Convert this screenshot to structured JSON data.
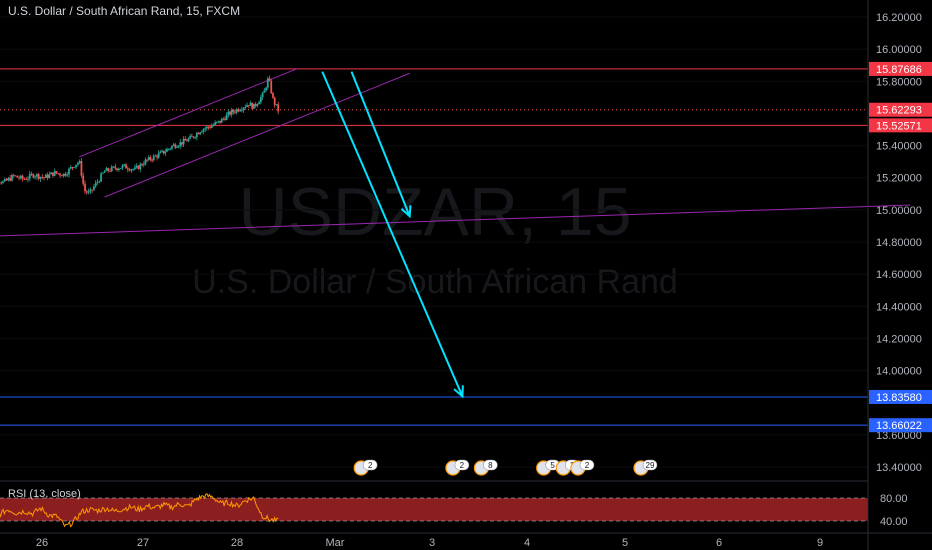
{
  "header": {
    "symbol_line": "U.S. Dollar / South African Rand, 15, FXCM"
  },
  "watermark": {
    "ticker": "USDZAR, 15",
    "name": "U.S. Dollar / South African Rand"
  },
  "rsi": {
    "label": "RSI (13, close)",
    "upper_level": 80,
    "lower_level": 40,
    "axis_labels": [
      "80.00",
      "40.00"
    ]
  },
  "colors": {
    "background": "#000000",
    "axis_text": "#b2b5be",
    "candle_up": "#26a69a",
    "candle_down": "#ef5350",
    "channel": "#9c27b0",
    "support_resistance": "#f23645",
    "target_lines": "#2962ff",
    "arrows": "#00e5ff",
    "rsi_line": "#ff9800",
    "rsi_band": "#8b1f1f"
  },
  "chart_data": {
    "type": "candlestick",
    "title": "U.S. Dollar / South African Rand, 15, FXCM",
    "x_ticks": [
      "26",
      "27",
      "28",
      "Mar",
      "3",
      "4",
      "5",
      "6",
      "9"
    ],
    "y_ticks": [
      "16.20000",
      "16.00000",
      "15.80000",
      "15.40000",
      "15.20000",
      "15.00000",
      "14.80000",
      "14.60000",
      "14.40000",
      "14.20000",
      "14.00000",
      "13.60000",
      "13.40000"
    ],
    "ylim": [
      13.3,
      16.3
    ],
    "price_labels": [
      {
        "value": "15.87686",
        "color": "#f23645"
      },
      {
        "value": "15.62293",
        "color": "#f23645"
      },
      {
        "value": "15.52571",
        "color": "#f23645"
      },
      {
        "value": "13.83580",
        "color": "#2962ff"
      },
      {
        "value": "13.66022",
        "color": "#2962ff"
      }
    ],
    "horizontal_levels": [
      15.87686,
      15.52571,
      13.8358,
      13.66022
    ],
    "last_price": 15.62293,
    "price_path": [
      [
        0,
        15.18
      ],
      [
        0.1,
        15.2
      ],
      [
        0.2,
        15.17
      ],
      [
        0.3,
        15.21
      ],
      [
        0.4,
        15.19
      ],
      [
        0.5,
        15.22
      ],
      [
        0.6,
        15.2
      ],
      [
        0.7,
        15.23
      ],
      [
        0.8,
        15.22
      ],
      [
        0.9,
        15.28
      ],
      [
        0.95,
        15.3
      ],
      [
        1.0,
        15.12
      ],
      [
        1.05,
        15.1
      ],
      [
        1.1,
        15.15
      ],
      [
        1.2,
        15.24
      ],
      [
        1.3,
        15.26
      ],
      [
        1.4,
        15.27
      ],
      [
        1.5,
        15.25
      ],
      [
        1.6,
        15.3
      ],
      [
        1.7,
        15.33
      ],
      [
        1.8,
        15.36
      ],
      [
        1.9,
        15.4
      ],
      [
        2.0,
        15.42
      ],
      [
        2.1,
        15.45
      ],
      [
        2.2,
        15.5
      ],
      [
        2.3,
        15.52
      ],
      [
        2.4,
        15.55
      ],
      [
        2.5,
        15.6
      ],
      [
        2.6,
        15.63
      ],
      [
        2.7,
        15.66
      ],
      [
        2.75,
        15.64
      ],
      [
        2.8,
        15.68
      ],
      [
        2.85,
        15.72
      ],
      [
        2.9,
        15.82
      ],
      [
        2.95,
        15.68
      ],
      [
        3.0,
        15.62
      ]
    ],
    "rsi_values": [
      55,
      58,
      52,
      60,
      54,
      57,
      53,
      62,
      50,
      48,
      30,
      38,
      56,
      60,
      58,
      62,
      57,
      61,
      64,
      60,
      66,
      63,
      68,
      64,
      70,
      65,
      78,
      84,
      82,
      70,
      72,
      66,
      76,
      80,
      50,
      42,
      40
    ],
    "channel_upper": [
      [
        0.95,
        15.33
      ],
      [
        3.2,
        15.88
      ]
    ],
    "channel_lower": [
      [
        1.2,
        15.08
      ],
      [
        4.35,
        15.85
      ]
    ],
    "long_trendline": [
      [
        -0.2,
        14.83
      ],
      [
        9.5,
        15.03
      ]
    ],
    "arrows": [
      {
        "from": [
          3.45,
          15.86
        ],
        "to": [
          4.9,
          13.84
        ]
      },
      {
        "from": [
          3.75,
          15.86
        ],
        "to": [
          4.35,
          14.96
        ]
      }
    ],
    "event_markers": [
      {
        "x": 3.85,
        "count": "2"
      },
      {
        "x": 4.8,
        "count": "2"
      },
      {
        "x": 5.1,
        "count": "8"
      },
      {
        "x": 5.75,
        "count": "5"
      },
      {
        "x": 5.95,
        "count": "2"
      },
      {
        "x": 6.1,
        "count": "2"
      },
      {
        "x": 6.75,
        "count": "29"
      }
    ]
  }
}
